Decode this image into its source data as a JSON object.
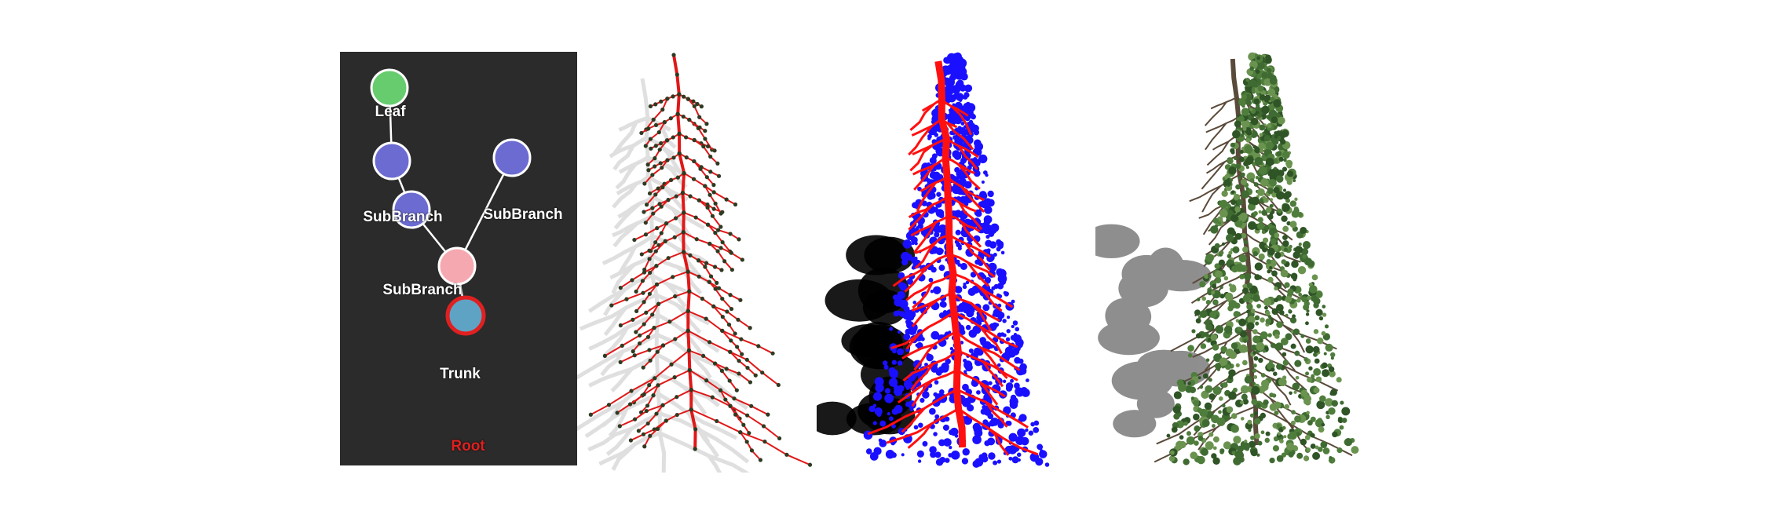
{
  "graph": {
    "nodes": [
      {
        "id": "leaf",
        "label": "Leaf",
        "color": "#66cc6e",
        "stroke": "#ffffff"
      },
      {
        "id": "subbranch-1",
        "label": "SubBranch",
        "color": "#6b6bd2",
        "stroke": "#ffffff"
      },
      {
        "id": "subbranch-2",
        "label": "SubBranch",
        "color": "#6b6bd2",
        "stroke": "#ffffff"
      },
      {
        "id": "subbranch-3",
        "label": "SubBranch",
        "color": "#6b6bd2",
        "stroke": "#ffffff"
      },
      {
        "id": "trunk",
        "label": "Trunk",
        "color": "#f6a8b0",
        "stroke": "#ffffff"
      },
      {
        "id": "root",
        "label": "Root",
        "color": "#5fa3c4",
        "stroke": "#e02020"
      }
    ],
    "edges": [
      [
        "leaf",
        "subbranch-1"
      ],
      [
        "subbranch-1",
        "subbranch-2"
      ],
      [
        "subbranch-2",
        "trunk"
      ],
      [
        "subbranch-3",
        "trunk"
      ],
      [
        "trunk",
        "root"
      ]
    ],
    "background": "#2b2b2b"
  },
  "renders": [
    {
      "name": "skeleton",
      "branch_color": "#e01818",
      "node_color": "#2e3a22"
    },
    {
      "name": "segmented",
      "branch_color": "#ff1010",
      "foliage_color": "#1a10ff"
    },
    {
      "name": "textured",
      "branch_color": "#5a4a3a",
      "foliage_color": "#3f6b32"
    }
  ]
}
